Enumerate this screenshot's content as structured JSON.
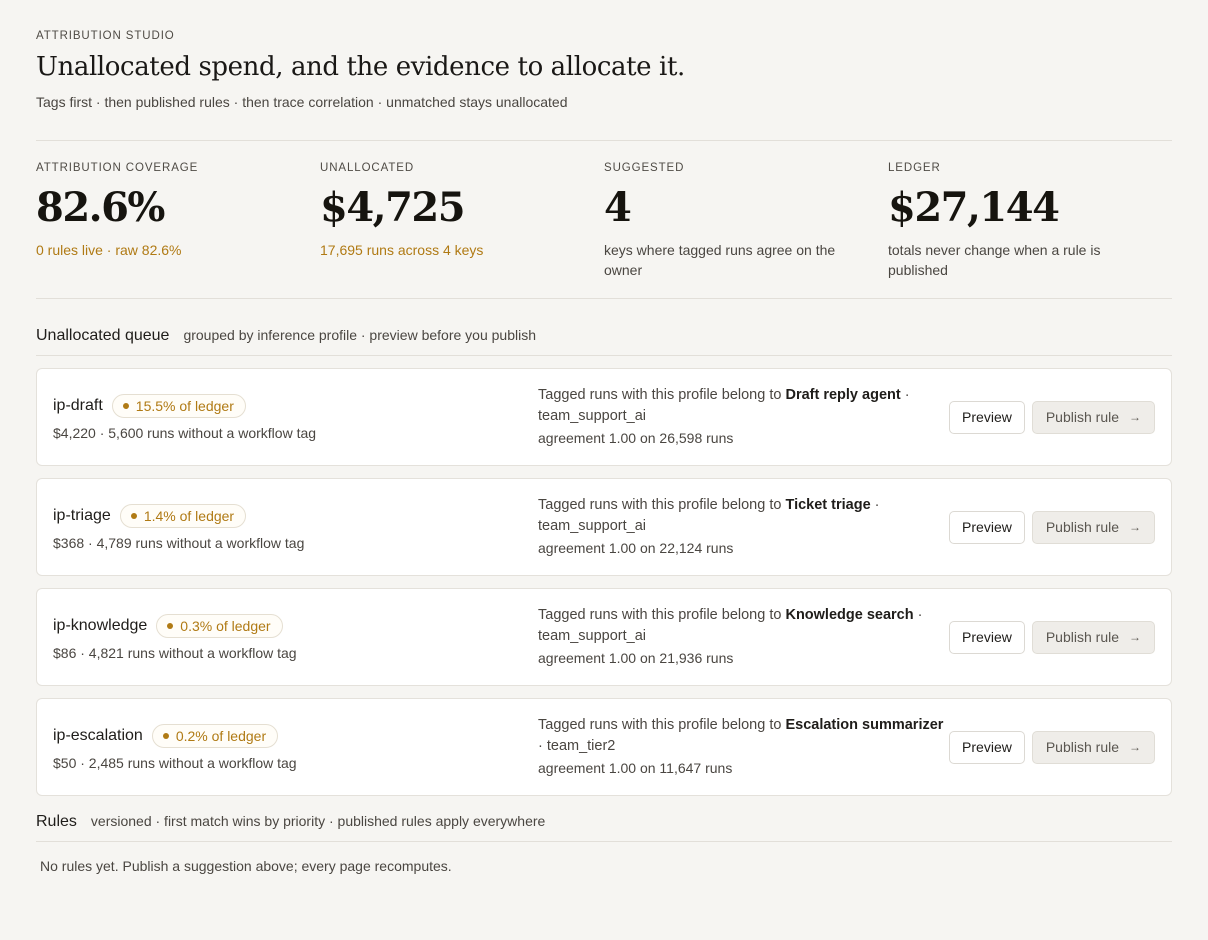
{
  "header": {
    "eyebrow": "ATTRIBUTION STUDIO",
    "title": "Unallocated spend, and the evidence to allocate it.",
    "subtitle": "Tags first · then published rules · then trace correlation · unmatched stays unallocated"
  },
  "stats": [
    {
      "label": "ATTRIBUTION COVERAGE",
      "value": "82.6%",
      "note": "0 rules live · raw 82.6%",
      "accent": true
    },
    {
      "label": "UNALLOCATED",
      "value": "$4,725",
      "note": "17,695 runs across 4 keys",
      "accent": true
    },
    {
      "label": "SUGGESTED",
      "value": "4",
      "note": "keys where tagged runs agree on the owner",
      "accent": false
    },
    {
      "label": "LEDGER",
      "value": "$27,144",
      "note": "totals never change when a rule is published",
      "accent": false
    }
  ],
  "queue": {
    "title": "Unallocated queue",
    "description": "grouped by inference profile · preview before you publish",
    "items": [
      {
        "profile": "ip-draft",
        "share": "15.5% of ledger",
        "meta": "$4,220 · 5,600 runs without a workflow tag",
        "evidence_prefix": "Tagged runs with this profile belong to ",
        "workflow": "Draft reply agent",
        "team": " · team_support_ai",
        "agreement": "agreement 1.00 on 26,598 runs",
        "preview_label": "Preview",
        "publish_label": "Publish rule"
      },
      {
        "profile": "ip-triage",
        "share": "1.4% of ledger",
        "meta": "$368 · 4,789 runs without a workflow tag",
        "evidence_prefix": "Tagged runs with this profile belong to ",
        "workflow": "Ticket triage",
        "team": " · team_support_ai",
        "agreement": "agreement 1.00 on 22,124 runs",
        "preview_label": "Preview",
        "publish_label": "Publish rule"
      },
      {
        "profile": "ip-knowledge",
        "share": "0.3% of ledger",
        "meta": "$86 · 4,821 runs without a workflow tag",
        "evidence_prefix": "Tagged runs with this profile belong to ",
        "workflow": "Knowledge search",
        "team": " · team_support_ai",
        "agreement": "agreement 1.00 on 21,936 runs",
        "preview_label": "Preview",
        "publish_label": "Publish rule"
      },
      {
        "profile": "ip-escalation",
        "share": "0.2% of ledger",
        "meta": "$50 · 2,485 runs without a workflow tag",
        "evidence_prefix": "Tagged runs with this profile belong to ",
        "workflow": "Escalation summarizer",
        "team": " · team_tier2",
        "agreement": "agreement 1.00 on 11,647 runs",
        "preview_label": "Preview",
        "publish_label": "Publish rule"
      }
    ]
  },
  "rules": {
    "title": "Rules",
    "description": "versioned · first match wins by priority · published rules apply everywhere",
    "empty": "No rules yet. Publish a suggestion above; every page recomputes."
  },
  "icons": {
    "publish_arrow": "arrow-right-icon",
    "share_dot": "dot-icon"
  },
  "colors": {
    "accent": "#b07a14",
    "background": "#f6f5f2",
    "card": "#ffffff"
  }
}
